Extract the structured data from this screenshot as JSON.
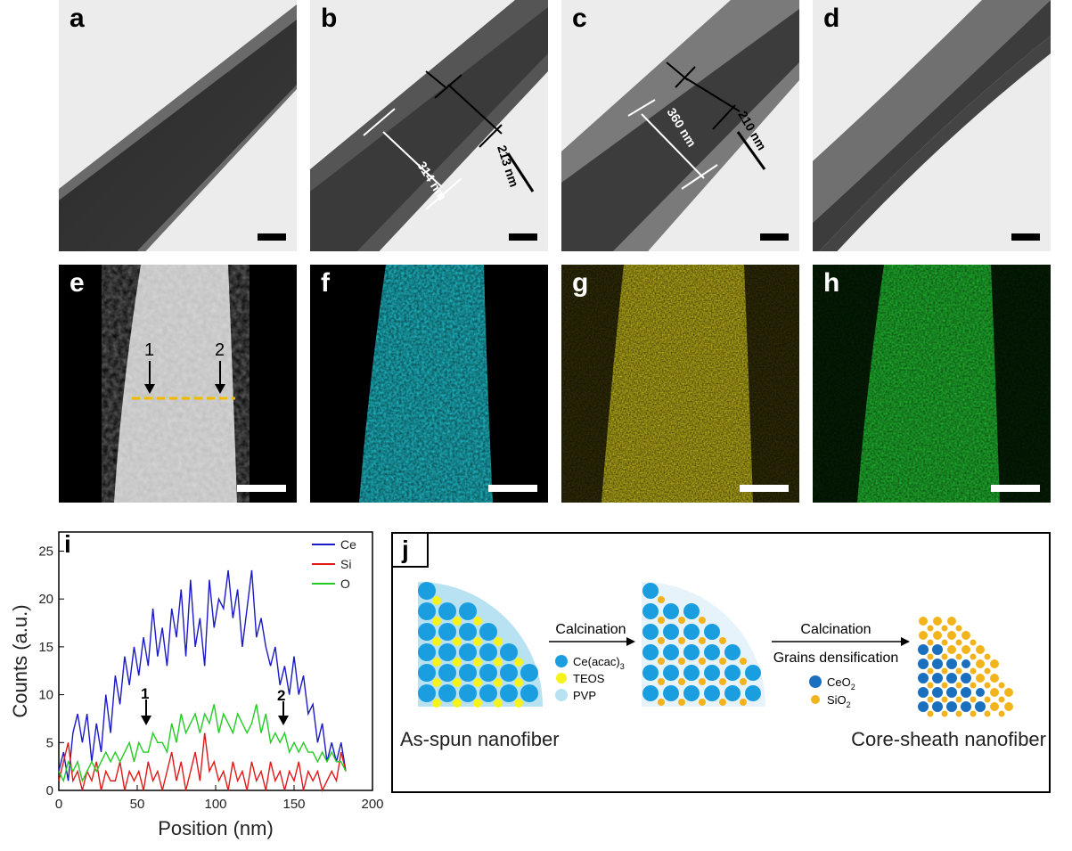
{
  "panels": {
    "a": {
      "label": "a"
    },
    "b": {
      "label": "b",
      "core_width": "314 nm",
      "sheath_width": "213 nm"
    },
    "c": {
      "label": "c",
      "core_width": "360 nm",
      "sheath_width": "210 nm"
    },
    "d": {
      "label": "d"
    },
    "e": {
      "label": "e",
      "marker1": "1",
      "marker2": "2"
    },
    "f": {
      "label": "f",
      "map_color": "#1fc7d4"
    },
    "g": {
      "label": "g",
      "map_color": "#d8cc1c"
    },
    "h": {
      "label": "h",
      "map_color": "#22c732"
    },
    "i": {
      "label": "i",
      "marker1": "1",
      "marker2": "2"
    },
    "j": {
      "label": "j",
      "step1_label": "Calcination",
      "step2_label": "Calcination",
      "step2_sub": "Grains densification",
      "legend1": {
        "ce": "Ce(acac)",
        "ce_sub": "3",
        "teos": "TEOS",
        "pvp": "PVP"
      },
      "legend2": {
        "ceo2": "CeO",
        "ceo2_sub": "2",
        "sio2": "SiO",
        "sio2_sub": "2"
      },
      "left_caption": "As-spun nanofiber",
      "right_caption": "Core-sheath nanofiber",
      "colors": {
        "ce": "#1a9ee0",
        "teos": "#f5f21c",
        "pvp": "#b8e2f2",
        "ceo2": "#1a6fbf",
        "sio2": "#f2b41c"
      }
    }
  },
  "chart_data": {
    "type": "line",
    "xlabel": "Position (nm)",
    "ylabel": "Counts (a.u.)",
    "xlim": [
      0,
      200
    ],
    "ylim": [
      0,
      27
    ],
    "xticks": [
      0,
      50,
      100,
      150,
      200
    ],
    "yticks": [
      0,
      5,
      10,
      15,
      20,
      25
    ],
    "legend_position": "top-right",
    "series": [
      {
        "name": "Ce",
        "color": "#1a1ac8",
        "x": [
          0,
          3,
          6,
          9,
          12,
          15,
          18,
          21,
          24,
          27,
          30,
          33,
          36,
          39,
          42,
          45,
          48,
          51,
          54,
          57,
          60,
          63,
          66,
          69,
          72,
          75,
          78,
          81,
          84,
          87,
          90,
          93,
          96,
          99,
          102,
          105,
          108,
          111,
          114,
          117,
          120,
          123,
          126,
          129,
          132,
          135,
          138,
          141,
          144,
          147,
          150,
          153,
          156,
          159,
          162,
          165,
          168,
          171,
          174,
          177,
          180,
          183
        ],
        "y": [
          2,
          4,
          1,
          6,
          8,
          5,
          8,
          3,
          7,
          4,
          10,
          6,
          12,
          9,
          14,
          11,
          15,
          12,
          16,
          13,
          19,
          14,
          17,
          13,
          19,
          16,
          21,
          14,
          22,
          15,
          18,
          13,
          22,
          17,
          20,
          19,
          23,
          18,
          21,
          15,
          19,
          23,
          16,
          18,
          15,
          13,
          15,
          11,
          13,
          10,
          14,
          10,
          12,
          8,
          9,
          5,
          7,
          3,
          5,
          3,
          5,
          2
        ]
      },
      {
        "name": "Si",
        "color": "#e01818",
        "x": [
          0,
          3,
          6,
          9,
          12,
          15,
          18,
          21,
          24,
          27,
          30,
          33,
          36,
          39,
          42,
          45,
          48,
          51,
          54,
          57,
          60,
          63,
          66,
          69,
          72,
          75,
          78,
          81,
          84,
          87,
          90,
          93,
          96,
          99,
          102,
          105,
          108,
          111,
          114,
          117,
          120,
          123,
          126,
          129,
          132,
          135,
          138,
          141,
          144,
          147,
          150,
          153,
          156,
          159,
          162,
          165,
          168,
          171,
          174,
          177,
          180,
          183
        ],
        "y": [
          1,
          3,
          5,
          1,
          2,
          0,
          2,
          1,
          3,
          0,
          2,
          1,
          1,
          3,
          0,
          2,
          1,
          2,
          0,
          3,
          1,
          2,
          0,
          2,
          4,
          1,
          3,
          0,
          2,
          4,
          1,
          6,
          2,
          3,
          1,
          2,
          0,
          3,
          1,
          2,
          0,
          3,
          1,
          2,
          0,
          3,
          1,
          2,
          0,
          2,
          1,
          3,
          0,
          2,
          1,
          2,
          0,
          1,
          2,
          1,
          4,
          2
        ]
      },
      {
        "name": "O",
        "color": "#22cc22",
        "x": [
          0,
          3,
          6,
          9,
          12,
          15,
          18,
          21,
          24,
          27,
          30,
          33,
          36,
          39,
          42,
          45,
          48,
          51,
          54,
          57,
          60,
          63,
          66,
          69,
          72,
          75,
          78,
          81,
          84,
          87,
          90,
          93,
          96,
          99,
          102,
          105,
          108,
          111,
          114,
          117,
          120,
          123,
          126,
          129,
          132,
          135,
          138,
          141,
          144,
          147,
          150,
          153,
          156,
          159,
          162,
          165,
          168,
          171,
          174,
          177,
          180,
          183
        ],
        "y": [
          2,
          1,
          3,
          2,
          3,
          1,
          2,
          3,
          2,
          3,
          4,
          3,
          4,
          3,
          4,
          5,
          3,
          5,
          4,
          4,
          6,
          5,
          5,
          4,
          7,
          5,
          8,
          6,
          7,
          8,
          6,
          8,
          7,
          9,
          6,
          8,
          7,
          6,
          8,
          7,
          6,
          7,
          9,
          6,
          8,
          5,
          6,
          5,
          6,
          4,
          5,
          4,
          5,
          4,
          4,
          3,
          4,
          3,
          4,
          3,
          3,
          2
        ]
      }
    ]
  }
}
